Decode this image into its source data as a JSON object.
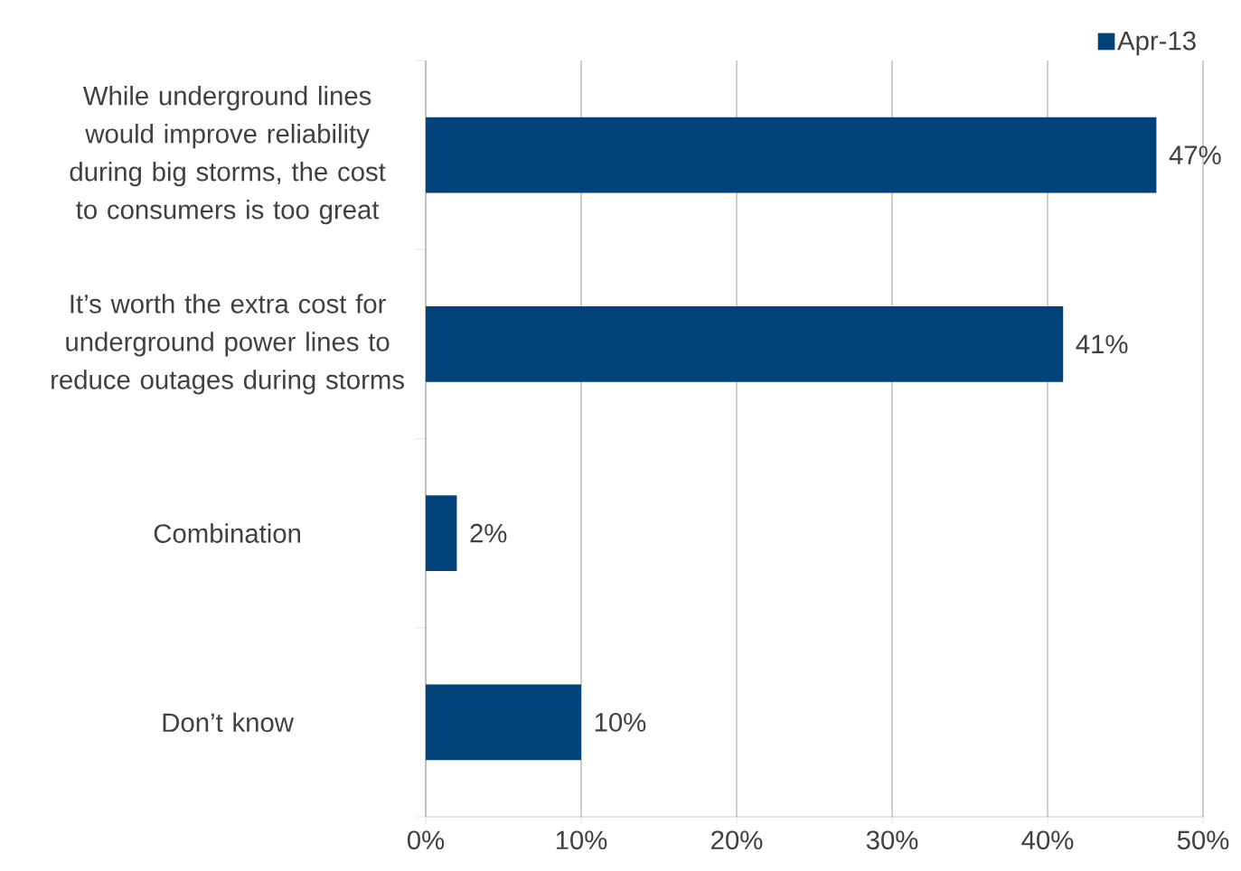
{
  "chart_data": {
    "type": "bar",
    "orientation": "horizontal",
    "categories": [
      "While underground lines would improve reliability during big storms, the cost to consumers is too great",
      "It’s worth the extra cost for underground power lines to reduce outages during storms",
      "Combination",
      "Don’t know"
    ],
    "series": [
      {
        "name": "Apr-13",
        "color": "#00427a",
        "values": [
          47,
          41,
          2,
          10
        ],
        "value_labels": [
          "47%",
          "41%",
          "2%",
          "10%"
        ]
      }
    ],
    "xlim": [
      0,
      50
    ],
    "xticks": [
      {
        "value": 0,
        "label": "0%"
      },
      {
        "value": 10,
        "label": "10%"
      },
      {
        "value": 20,
        "label": "20%"
      },
      {
        "value": 30,
        "label": "30%"
      },
      {
        "value": 40,
        "label": "40%"
      },
      {
        "value": 50,
        "label": "50%"
      }
    ],
    "grid": "x",
    "legend": "top right"
  }
}
